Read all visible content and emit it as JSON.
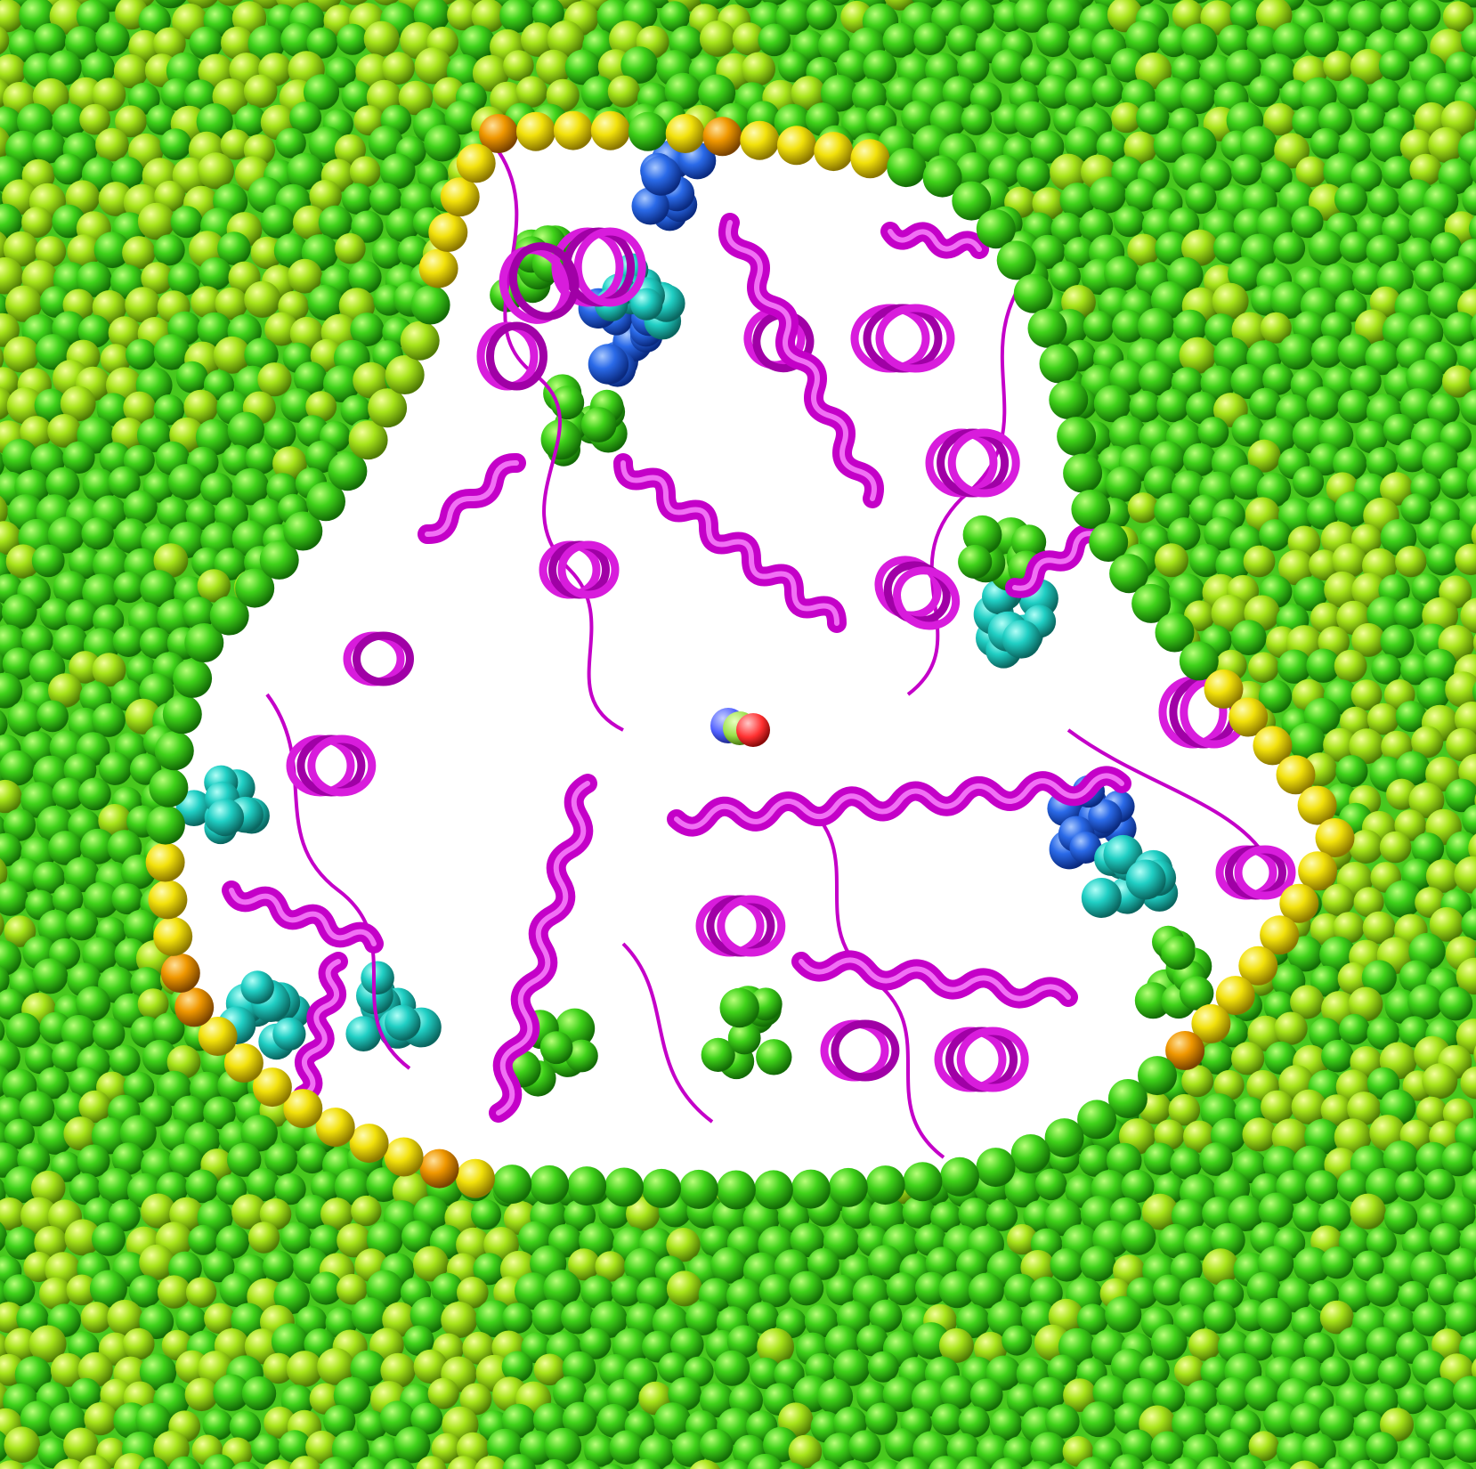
{
  "image": {
    "kind": "molecular-render",
    "description_visible_text": "",
    "colors": {
      "background_pore": "#ffffff",
      "membrane_green": "#3fd21a",
      "membrane_yellow": "#f2e60a",
      "membrane_orange": "#f0a000",
      "membrane_cyan": "#20d0c8",
      "membrane_blue": "#2050e0",
      "protein_ribbon": "#c400c8",
      "ligand_nitrogen": "#5060ff",
      "ligand_carbon": "#9be04a",
      "ligand_oxygen": "#ff3030"
    }
  }
}
